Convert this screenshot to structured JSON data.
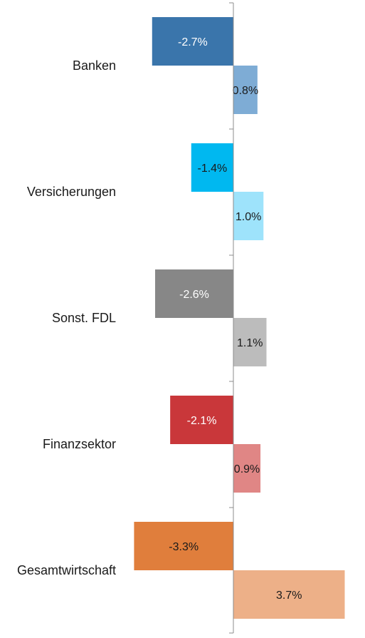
{
  "chart_data": {
    "type": "bar",
    "orientation": "horizontal",
    "categories": [
      "Banken",
      "Versicherungen",
      "Sonst. FDL",
      "Finanzsektor",
      "Gesamtwirtschaft"
    ],
    "series": [
      {
        "values": [
          -2.7,
          -1.4,
          -2.6,
          -2.1,
          -3.3
        ]
      },
      {
        "values": [
          0.8,
          1.0,
          1.1,
          0.9,
          3.7
        ]
      }
    ],
    "value_labels": [
      [
        "-2.7%",
        "-1.4%",
        "-2.6%",
        "-2.1%",
        "-3.3%"
      ],
      [
        "0.8%",
        "1.0%",
        "1.1%",
        "0.9%",
        "3.7%"
      ]
    ],
    "bar_colors": [
      [
        "#3a75ab",
        "#7eacd5"
      ],
      [
        "#00b8f0",
        "#9ee3fb"
      ],
      [
        "#878787",
        "#bcbcbc"
      ],
      [
        "#c9373a",
        "#e08685"
      ],
      [
        "#e07e3c",
        "#edb088"
      ]
    ],
    "label_colors": [
      [
        "#ffffff",
        "#1a1a1a"
      ],
      [
        "#1a1a1a",
        "#1a1a1a"
      ],
      [
        "#ffffff",
        "#1a1a1a"
      ],
      [
        "#ffffff",
        "#1a1a1a"
      ],
      [
        "#1a1a1a",
        "#1a1a1a"
      ]
    ],
    "axis_color": "#8c8c8c",
    "xlim": [
      -3.3,
      3.7
    ],
    "title": "",
    "xlabel": "",
    "ylabel": "",
    "grid": false,
    "legend": "none"
  }
}
